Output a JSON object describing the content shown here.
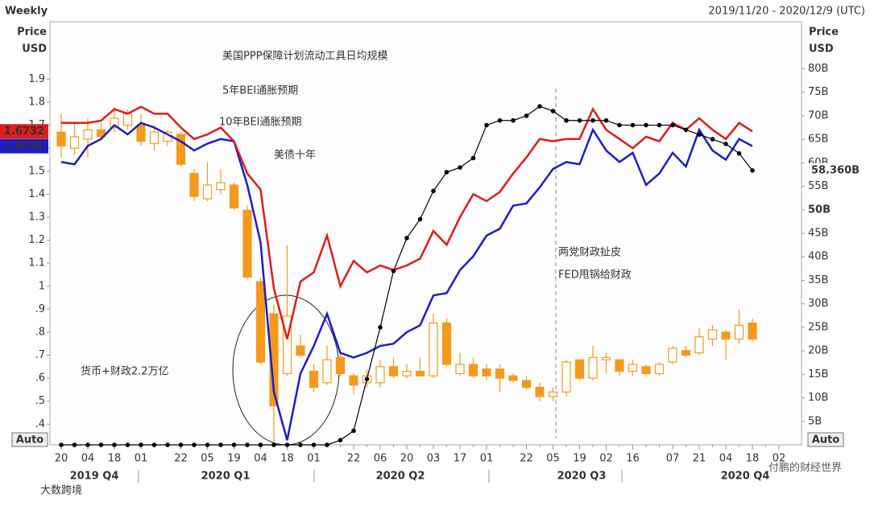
{
  "chart_data": {
    "type": "candlestick",
    "header": "Weekly",
    "date_range": "2019/11/20 - 2020/12/9 (UTC)",
    "left_axis_label": [
      "Price",
      "USD"
    ],
    "right_axis_label": [
      "Price",
      "USD"
    ],
    "auto_button": "Auto",
    "annotations": [
      "两党财政扯皮",
      "FED甩锅给财政",
      "货币+财政2.2万亿"
    ],
    "watermarks": [
      "付鹏的财经世界",
      "大数跨境"
    ],
    "quarters": [
      "2019 Q4",
      "2020 Q1",
      "2020 Q2",
      "2020 Q3",
      "2020 Q4"
    ],
    "categories": [
      "20",
      null,
      "04",
      null,
      "18",
      null,
      "01",
      null,
      null,
      "22",
      null,
      "05",
      null,
      "19",
      null,
      "04",
      null,
      "18",
      null,
      "01",
      null,
      null,
      "22",
      null,
      "06",
      null,
      "20",
      null,
      "03",
      null,
      "17",
      null,
      "01",
      null,
      null,
      "22",
      null,
      "05",
      null,
      "19",
      null,
      "02",
      null,
      "16",
      null,
      null,
      "07",
      null,
      "21",
      null,
      "04",
      null,
      "18",
      null,
      "02"
    ],
    "ylim": [
      0.31,
      2.15
    ],
    "yticks": [
      1.9,
      1.8,
      1.7,
      1.6,
      1.5,
      1.4,
      1.3,
      1.2,
      1.1,
      1,
      {
        "value": 0.9,
        "label": ".9"
      },
      {
        "value": 0.8,
        "label": ".8"
      },
      {
        "value": 0.7,
        "label": ".7"
      },
      {
        "value": 0.6,
        "label": ".6"
      },
      {
        "value": 0.5,
        "label": ".5"
      },
      {
        "value": 0.4,
        "label": ".4"
      }
    ],
    "y2lim": [
      0,
      90
    ],
    "y2ticks": [
      {
        "value": 80,
        "label": "80B"
      },
      {
        "value": 75,
        "label": "75B"
      },
      {
        "value": 70,
        "label": "70B"
      },
      {
        "value": 65,
        "label": "65B"
      },
      {
        "value": 60,
        "label": "60B"
      },
      {
        "value": 55,
        "label": "55B"
      },
      {
        "value": 50,
        "label": "50B"
      },
      {
        "value": 45,
        "label": "45B"
      },
      {
        "value": 40,
        "label": "40B"
      },
      {
        "value": 35,
        "label": "35B"
      },
      {
        "value": 30,
        "label": "30B"
      },
      {
        "value": 25,
        "label": "25B"
      },
      {
        "value": 20,
        "label": "20B"
      },
      {
        "value": 15,
        "label": "15B"
      },
      {
        "value": 10,
        "label": "10B"
      },
      {
        "value": 5,
        "label": "5B"
      }
    ],
    "series": [
      {
        "name": "美债十年",
        "type": "candlestick",
        "color": "#f39a1e",
        "open": [
          1.67,
          1.6,
          1.64,
          1.68,
          1.69,
          1.7,
          1.7,
          1.62,
          1.63,
          1.66,
          1.49,
          1.38,
          1.42,
          1.44,
          1.33,
          1.02,
          0.88,
          0.62,
          0.74,
          0.63,
          0.58,
          0.69,
          0.61,
          0.58,
          0.58,
          0.65,
          0.61,
          0.63,
          0.61,
          0.84,
          0.62,
          0.66,
          0.64,
          0.64,
          0.61,
          0.59,
          0.56,
          0.52,
          0.54,
          0.68,
          0.6,
          0.68,
          0.68,
          0.63,
          0.65,
          0.62,
          0.67,
          0.72,
          0.71,
          0.77,
          0.8,
          0.77,
          0.84,
          null,
          null
        ],
        "high": [
          1.75,
          1.71,
          1.73,
          1.71,
          1.78,
          1.77,
          1.75,
          1.7,
          1.68,
          1.67,
          1.51,
          1.54,
          1.51,
          1.45,
          1.35,
          1.04,
          0.92,
          1.18,
          0.79,
          0.66,
          0.74,
          0.71,
          0.62,
          0.64,
          0.68,
          0.69,
          0.66,
          0.69,
          0.88,
          0.86,
          0.71,
          0.69,
          0.66,
          0.66,
          0.62,
          0.61,
          0.58,
          0.56,
          0.68,
          0.68,
          0.74,
          0.71,
          0.68,
          0.68,
          0.66,
          0.67,
          0.74,
          0.74,
          0.82,
          0.83,
          0.81,
          0.9,
          0.86,
          null,
          null
        ],
        "low": [
          1.56,
          1.57,
          1.56,
          1.64,
          1.67,
          1.68,
          1.61,
          1.59,
          1.61,
          1.52,
          1.37,
          1.37,
          1.4,
          1.33,
          1.03,
          0.66,
          0.32,
          0.61,
          0.69,
          0.54,
          0.57,
          0.61,
          0.53,
          0.56,
          0.56,
          0.6,
          0.6,
          0.61,
          0.6,
          0.65,
          0.61,
          0.6,
          0.59,
          0.54,
          0.58,
          0.55,
          0.5,
          0.5,
          0.52,
          0.59,
          0.59,
          0.62,
          0.61,
          0.61,
          0.61,
          0.61,
          0.66,
          0.69,
          0.7,
          0.74,
          0.68,
          0.75,
          0.76,
          null,
          null
        ],
        "close": [
          1.61,
          1.65,
          1.68,
          1.65,
          1.73,
          1.75,
          1.63,
          1.67,
          1.67,
          1.53,
          1.39,
          1.44,
          1.45,
          1.34,
          1.04,
          0.67,
          0.48,
          0.87,
          0.7,
          0.56,
          0.68,
          0.62,
          0.57,
          0.61,
          0.65,
          0.61,
          0.63,
          0.61,
          0.84,
          0.66,
          0.66,
          0.61,
          0.61,
          0.6,
          0.59,
          0.56,
          0.52,
          0.54,
          0.67,
          0.6,
          0.69,
          0.69,
          0.63,
          0.66,
          0.62,
          0.66,
          0.73,
          0.7,
          0.78,
          0.81,
          0.77,
          0.83,
          0.77,
          null,
          null
        ]
      },
      {
        "name": "5年BEI通胀预期",
        "type": "line",
        "color": "#1c1ccc",
        "values": [
          1.54,
          1.53,
          1.61,
          1.64,
          1.7,
          1.66,
          1.71,
          1.69,
          1.66,
          1.63,
          1.59,
          1.62,
          1.64,
          1.63,
          1.44,
          1.19,
          0.54,
          0.33,
          0.62,
          0.74,
          0.88,
          0.71,
          0.69,
          0.71,
          0.74,
          0.75,
          0.8,
          0.83,
          0.96,
          0.97,
          1.07,
          1.13,
          1.22,
          1.25,
          1.35,
          1.36,
          1.43,
          1.51,
          1.54,
          1.53,
          1.68,
          1.59,
          1.54,
          1.58,
          1.44,
          1.49,
          1.58,
          1.52,
          1.68,
          1.59,
          1.55,
          1.64,
          1.609,
          null,
          null
        ],
        "value_labels": [
          null,
          null,
          null,
          null,
          null,
          null,
          null,
          null,
          null,
          null,
          null,
          null,
          null,
          null,
          null,
          null,
          null,
          null,
          null,
          null,
          null,
          null,
          null,
          null,
          null,
          null,
          null,
          null,
          null,
          null,
          null,
          null,
          null,
          null,
          null,
          null,
          null,
          null,
          null,
          null,
          null,
          null,
          null,
          null,
          null,
          null,
          null,
          null,
          null,
          null,
          null,
          null,
          "1.6090",
          null,
          null
        ]
      },
      {
        "name": "10年BEI通胀预期",
        "type": "line",
        "color": "#e01b1b",
        "values": [
          1.71,
          1.71,
          1.71,
          1.72,
          1.77,
          1.75,
          1.78,
          1.75,
          1.75,
          1.69,
          1.64,
          1.66,
          1.69,
          1.63,
          1.49,
          1.42,
          0.99,
          0.77,
          1.02,
          1.06,
          1.22,
          1.0,
          1.11,
          1.06,
          1.09,
          1.07,
          1.09,
          1.12,
          1.24,
          1.18,
          1.3,
          1.4,
          1.37,
          1.41,
          1.49,
          1.56,
          1.64,
          1.63,
          1.64,
          1.64,
          1.77,
          1.68,
          1.64,
          1.6,
          1.65,
          1.63,
          1.71,
          1.68,
          1.73,
          1.68,
          1.64,
          1.71,
          1.6732,
          null,
          null
        ],
        "value_labels": [
          null,
          null,
          null,
          null,
          null,
          null,
          null,
          null,
          null,
          null,
          null,
          null,
          null,
          null,
          null,
          null,
          null,
          null,
          null,
          null,
          null,
          null,
          null,
          null,
          null,
          null,
          null,
          null,
          null,
          null,
          null,
          null,
          null,
          null,
          null,
          null,
          null,
          null,
          null,
          null,
          null,
          null,
          null,
          null,
          null,
          null,
          null,
          null,
          null,
          null,
          null,
          null,
          "1.6732",
          null,
          null
        ]
      },
      {
        "name": "美国PPP保障计划流动工具日均规模",
        "type": "line",
        "axis": "y2",
        "color": "#000000",
        "markers": true,
        "values": [
          0,
          0,
          0,
          0,
          0,
          0,
          0,
          0,
          0,
          0,
          0,
          0,
          0,
          0,
          0,
          0,
          0,
          0,
          0,
          0,
          0,
          1,
          3,
          14,
          25,
          37,
          44,
          48,
          54,
          58,
          59,
          61,
          68,
          69,
          69,
          70,
          72,
          71,
          69,
          69,
          69,
          69,
          68,
          68,
          68,
          68,
          68,
          67,
          66,
          65,
          64,
          62,
          58.36,
          null,
          null
        ],
        "value_labels": [
          null,
          null,
          null,
          null,
          null,
          null,
          null,
          null,
          null,
          null,
          null,
          null,
          null,
          null,
          null,
          null,
          null,
          null,
          null,
          null,
          null,
          null,
          null,
          null,
          null,
          null,
          null,
          null,
          null,
          null,
          null,
          null,
          null,
          null,
          null,
          null,
          null,
          null,
          null,
          null,
          null,
          null,
          null,
          null,
          null,
          null,
          null,
          null,
          null,
          null,
          null,
          null,
          "58.360B",
          null,
          null
        ]
      }
    ]
  }
}
